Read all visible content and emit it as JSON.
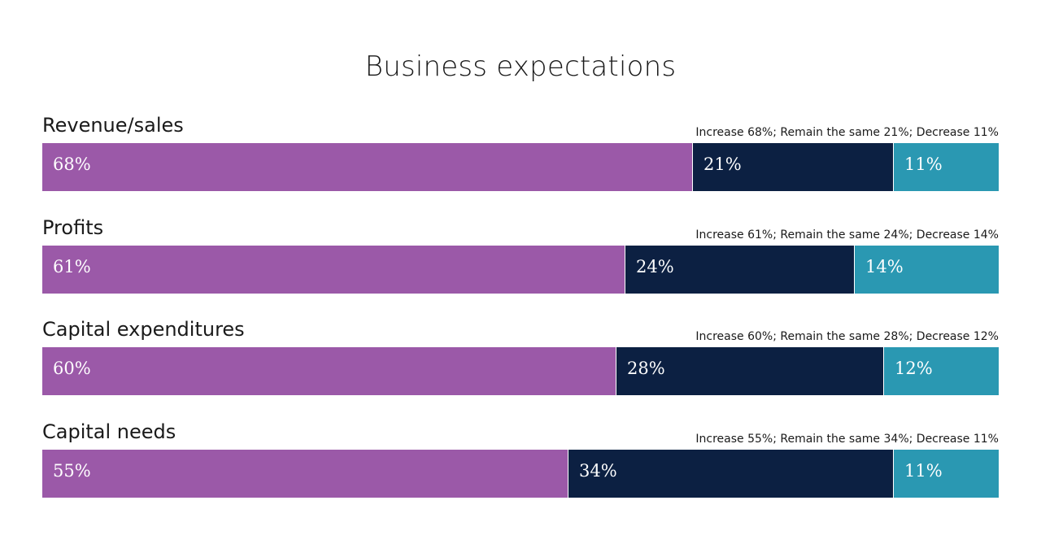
{
  "chart_data": {
    "type": "bar",
    "orientation": "horizontal",
    "stacked": true,
    "title": "Business expectations",
    "categories": [
      "Revenue/sales",
      "Profits",
      "Capital expenditures",
      "Capital needs"
    ],
    "series": [
      {
        "name": "Increase",
        "color": "#9b59a8",
        "values": [
          68,
          61,
          60,
          55
        ],
        "labels": [
          "68%",
          "61%",
          "60%",
          "55%"
        ]
      },
      {
        "name": "Remain the same",
        "color": "#0c2042",
        "values": [
          21,
          24,
          28,
          34
        ],
        "labels": [
          "21%",
          "24%",
          "28%",
          "34%"
        ]
      },
      {
        "name": "Decrease",
        "color": "#2a98b2",
        "values": [
          11,
          14,
          12,
          11
        ],
        "labels": [
          "11%",
          "14%",
          "12%",
          "11%"
        ]
      }
    ],
    "summaries": [
      "Increase 68%; Remain the same 21%; Decrease 11%",
      "Increase 61%; Remain the same 24%; Decrease 14%",
      "Increase 60%; Remain the same 28%; Decrease 12%",
      "Increase 55%; Remain the same 34%; Decrease 11%"
    ],
    "xlim": [
      0,
      100
    ],
    "grid": false,
    "legend": "none"
  }
}
